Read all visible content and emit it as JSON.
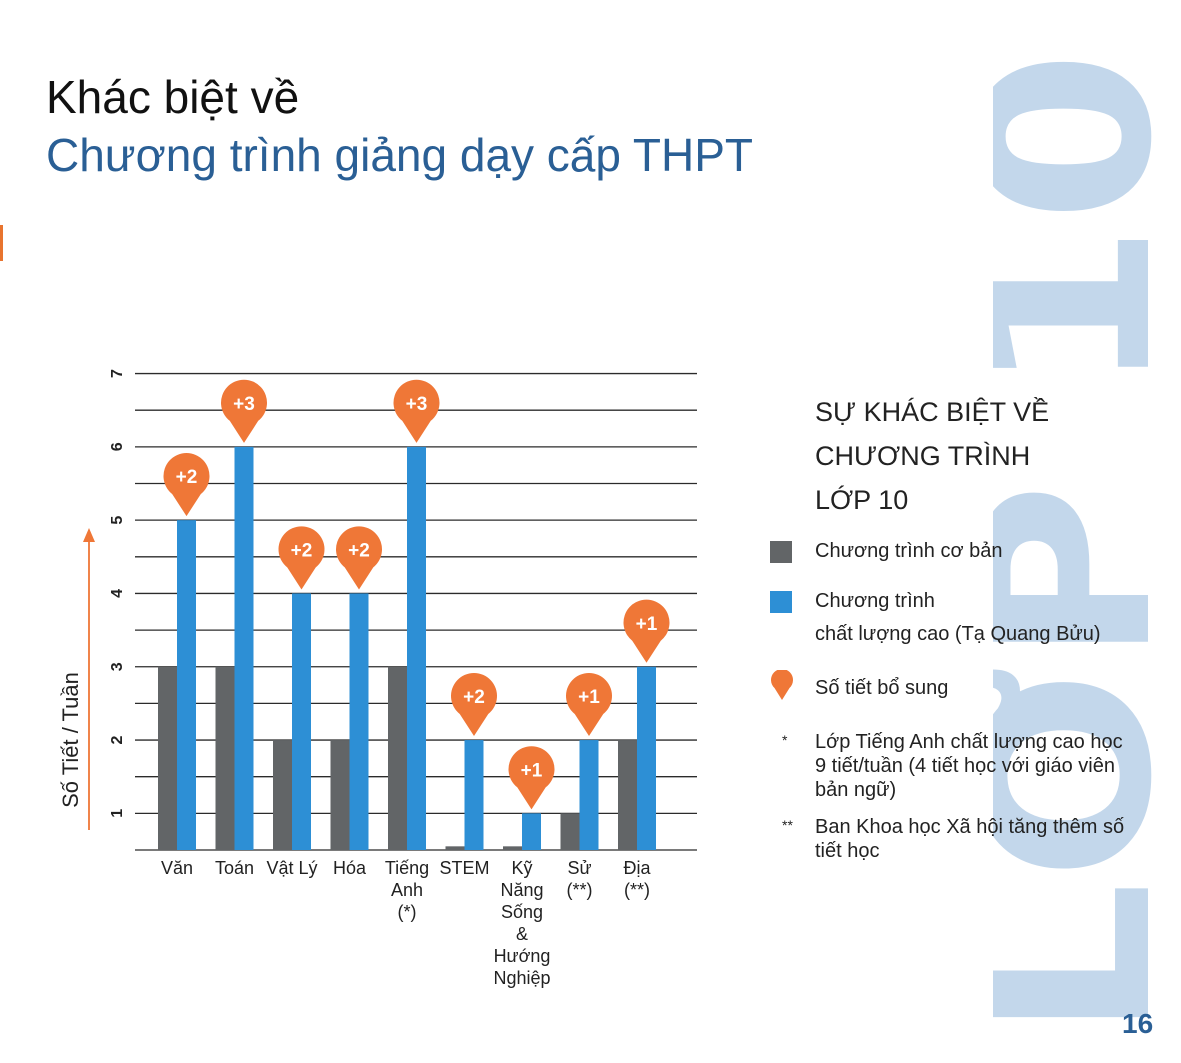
{
  "page": {
    "title_line1": "Khác biệt về",
    "title_line2": "Chương trình giảng dạy cấp THPT",
    "watermark_text": "LỚP 10",
    "page_number": "16"
  },
  "legend": {
    "title_lines": [
      "SỰ KHÁC BIỆT VỀ",
      "CHƯƠNG TRÌNH",
      "LỚP 10"
    ],
    "items": [
      {
        "label_lines": [
          "Chương trình cơ bản"
        ],
        "color": "#626567",
        "shape": "square"
      },
      {
        "label_lines": [
          "Chương trình",
          "chất lượng cao (Tạ Quang Bửu)"
        ],
        "color": "#2d8fd5",
        "shape": "square"
      },
      {
        "label_lines": [
          "Số tiết bổ sung"
        ],
        "color": "#ef7737",
        "shape": "pin"
      }
    ],
    "notes": [
      {
        "mark": "*",
        "text": "Lớp Tiếng Anh chất lượng cao học 9 tiết/tuần (4 tiết học với giáo viên bản ngữ)"
      },
      {
        "mark": "**",
        "text": "Ban Khoa học Xã hội tăng thêm số tiết học"
      }
    ]
  },
  "chart_data": {
    "type": "bar",
    "ylabel": "Số Tiết / Tuần",
    "ylim": [
      0.5,
      7
    ],
    "yticks": [
      1,
      2,
      3,
      4,
      5,
      6,
      7
    ],
    "categories": [
      [
        "Văn"
      ],
      [
        "Toán"
      ],
      [
        "Vật Lý"
      ],
      [
        "Hóa"
      ],
      [
        "Tiếng",
        "Anh",
        "(*)"
      ],
      [
        "STEM"
      ],
      [
        "Kỹ",
        "Năng",
        "Sống",
        "&",
        "Hướng",
        "Nghiệp"
      ],
      [
        "Sử",
        "(**)"
      ],
      [
        "Địa",
        "(**)"
      ]
    ],
    "series": [
      {
        "name": "Chương trình cơ bản",
        "color": "#626567",
        "values": [
          3,
          3,
          2,
          2,
          3,
          0.55,
          0.55,
          1,
          2
        ]
      },
      {
        "name": "Chương trình chất lượng cao (Tạ Quang Bửu)",
        "color": "#2d8fd5",
        "values": [
          5,
          6,
          4,
          4,
          6,
          2,
          1,
          2,
          3
        ]
      }
    ],
    "annotations": [
      "+2",
      "+3",
      "+2",
      "+2",
      "+3",
      "+2",
      "+1",
      "+1",
      "+1"
    ],
    "annotation_color": "#ef7737",
    "grid": true
  }
}
